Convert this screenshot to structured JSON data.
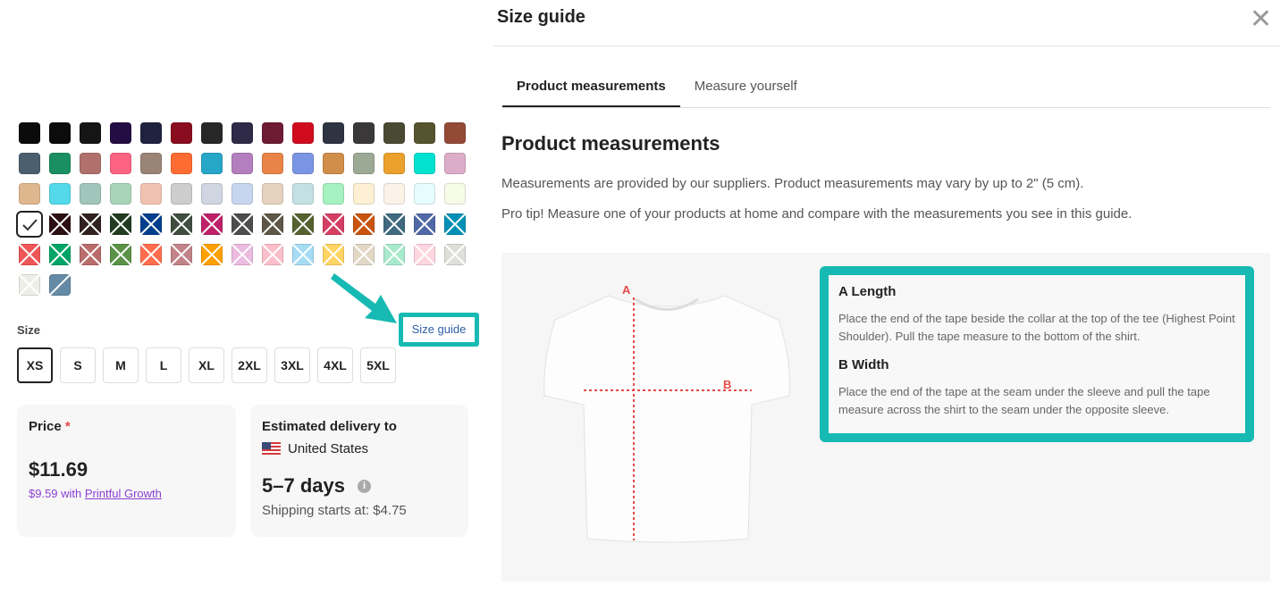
{
  "colors": {
    "accent": "#17bab3",
    "link": "#2c5fa8",
    "growth": "#8a3fd1",
    "measure_line": "#e84a4a"
  },
  "swatches": [
    [
      "#0b0b0b",
      "#0c0c0c",
      "#151515",
      "#240d43",
      "#1f2340",
      "#890d1e",
      "#272727",
      "#2e2a48",
      "#6e1b34",
      "#d00b1e",
      "#2e3442",
      "#3a3839",
      "#4a4a33",
      "#565430",
      "#934a37"
    ],
    [
      "#4b5f6e",
      "#1a9062",
      "#b0716c",
      "#ff6384",
      "#9a8478",
      "#ff6c33",
      "#27a7c8",
      "#b47fbf",
      "#ea8347",
      "#7b95e5",
      "#d08e4a",
      "#9ca994",
      "#eca12c",
      "#00e2cf",
      "#dcadc8"
    ],
    [
      "#dfb78f",
      "#53d9ea",
      "#a0c5bb",
      "#a9d4b8",
      "#f2c2b1",
      "#cdcdcd",
      "#cfd6e2",
      "#c6d6ee",
      "#e6d3bf",
      "#c3e1e3",
      "#a6f2c1",
      "#fdf0d3",
      "#fbf3e8",
      "#e7fcfe",
      "#f6fce8"
    ],
    [
      "selected:#ffffff",
      "x:#2b0f12",
      "x:#312220",
      "x:#213c22",
      "x:#013f8e",
      "x:#3f4e3f",
      "x:#be2169",
      "x:#4e4d4c",
      "x:#5e5646",
      "x:#55622f",
      "x:#d43f63",
      "x:#c8540e",
      "x:#3f6a7f",
      "x:#5068a6",
      "x:#0090b6"
    ],
    [
      "x:#ef5658",
      "x:#00a566",
      "x:#b96c6a",
      "x:#5a9347",
      "x:#ff6d4f",
      "x:#c18288",
      "x:#ffa000",
      "x:#ebbbe0",
      "x:#fbbfc9",
      "x:#a6dcf3",
      "x:#ffd464",
      "x:#e2d8c5",
      "x:#a8e9cb",
      "x:#fdd6e0",
      "x:#dedfd9"
    ],
    [
      "x:#eeeee8",
      "half:#658aa5"
    ]
  ],
  "size": {
    "label": "Size",
    "guide_link": "Size guide",
    "options": [
      "XS",
      "S",
      "M",
      "L",
      "XL",
      "2XL",
      "3XL",
      "4XL",
      "5XL"
    ],
    "selected": "XS"
  },
  "price": {
    "label": "Price",
    "required_mark": "*",
    "value": "$11.69",
    "growth_price": "$9.59 with",
    "growth_link": "Printful Growth"
  },
  "delivery": {
    "label": "Estimated delivery to",
    "country": "United States",
    "flag_icon": "us-flag-icon",
    "days": "5–7 days",
    "info_icon": "i",
    "shipping": "Shipping starts at: $4.75"
  },
  "panel": {
    "title": "Size guide",
    "close": "✕",
    "tabs": [
      {
        "label": "Product measurements",
        "active": true
      },
      {
        "label": "Measure yourself",
        "active": false
      }
    ],
    "heading": "Product measurements",
    "p1": "Measurements are provided by our suppliers. Product measurements may vary by up to 2\" (5 cm).",
    "p2": "Pro tip! Measure one of your products at home and compare with the measurements you see in this guide.",
    "marker_a": "A",
    "marker_b": "B",
    "a_title": "A Length",
    "a_text": "Place the end of the tape beside the collar at the top of the tee (Highest Point Shoulder). Pull the tape measure to the bottom of the shirt.",
    "b_title": "B Width",
    "b_text": "Place the end of the tape at the seam under the sleeve and pull the tape measure across the shirt to the seam under the opposite sleeve."
  }
}
